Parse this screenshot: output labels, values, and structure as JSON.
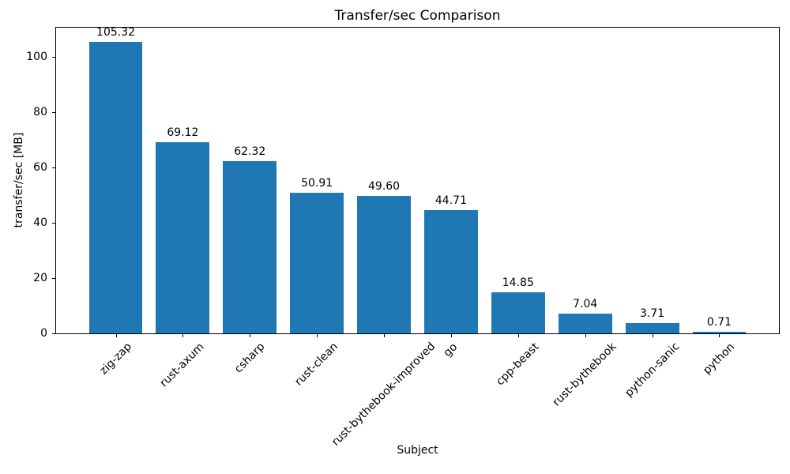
{
  "chart_data": {
    "type": "bar",
    "title": "Transfer/sec Comparison",
    "xlabel": "Subject",
    "ylabel": "transfer/sec [MB]",
    "categories": [
      "zig-zap",
      "rust-axum",
      "csharp",
      "rust-clean",
      "rust-bythebook-improved",
      "go",
      "cpp-beast",
      "rust-bythebook",
      "python-sanic",
      "python"
    ],
    "values": [
      105.32,
      69.12,
      62.32,
      50.91,
      49.6,
      44.71,
      14.85,
      7.04,
      3.71,
      0.71
    ],
    "bar_labels": [
      "105.32",
      "69.12",
      "62.32",
      "50.91",
      "49.60",
      "44.71",
      "14.85",
      "7.04",
      "3.71",
      "0.71"
    ],
    "bar_color": "#1f77b4",
    "yticks": [
      0,
      20,
      40,
      60,
      80,
      100
    ],
    "ylim": [
      0,
      110.6
    ],
    "x_tick_rotation_deg": 45,
    "grid": false,
    "legend_position": "none"
  }
}
